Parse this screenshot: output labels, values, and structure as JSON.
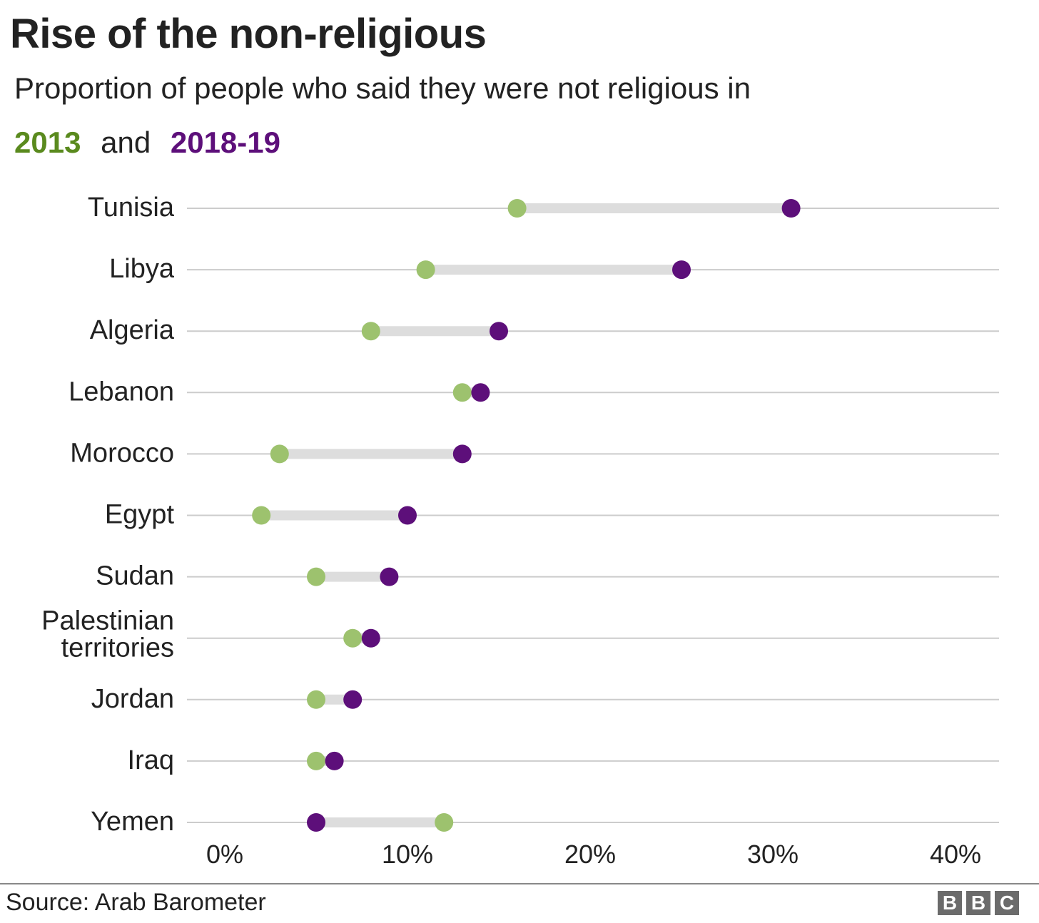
{
  "title": "Rise of the non-religious",
  "subtitle": "Proportion of people who said they were not religious in",
  "legend": {
    "and_text": "and",
    "items": [
      {
        "label": "2013",
        "color": "#5a8a1e"
      },
      {
        "label": "2018-19",
        "color": "#5d0f7a"
      }
    ]
  },
  "footer": {
    "source": "Source: Arab Barometer",
    "logo_letters": [
      "B",
      "B",
      "C"
    ]
  },
  "colors": {
    "dot_2013": "#9dc26e",
    "dot_2018": "#5d0f7a",
    "connector": "#dddddd",
    "gridline": "#cccccc"
  },
  "chart_data": {
    "type": "dumbbell",
    "title": "Rise of the non-religious",
    "subtitle": "Proportion of people who said they were not religious in",
    "series": [
      {
        "name": "2013",
        "color": "#9dc26e",
        "values": [
          16,
          11,
          8,
          13,
          3,
          2,
          5,
          7,
          5,
          5,
          12
        ]
      },
      {
        "name": "2018-19",
        "color": "#5d0f7a",
        "values": [
          31,
          25,
          15,
          14,
          13,
          10,
          9,
          8,
          7,
          6,
          5
        ]
      }
    ],
    "categories": [
      [
        "Tunisia"
      ],
      [
        "Libya"
      ],
      [
        "Algeria"
      ],
      [
        "Lebanon"
      ],
      [
        "Morocco"
      ],
      [
        "Egypt"
      ],
      [
        "Sudan"
      ],
      [
        "Palestinian",
        "territories"
      ],
      [
        "Jordan"
      ],
      [
        "Iraq"
      ],
      [
        "Yemen"
      ]
    ],
    "x_ticks": [
      "0%",
      "10%",
      "20%",
      "30%",
      "40%"
    ],
    "x_tick_values": [
      0,
      10,
      20,
      30,
      40
    ],
    "xlim": [
      0,
      42
    ],
    "grid": true
  }
}
